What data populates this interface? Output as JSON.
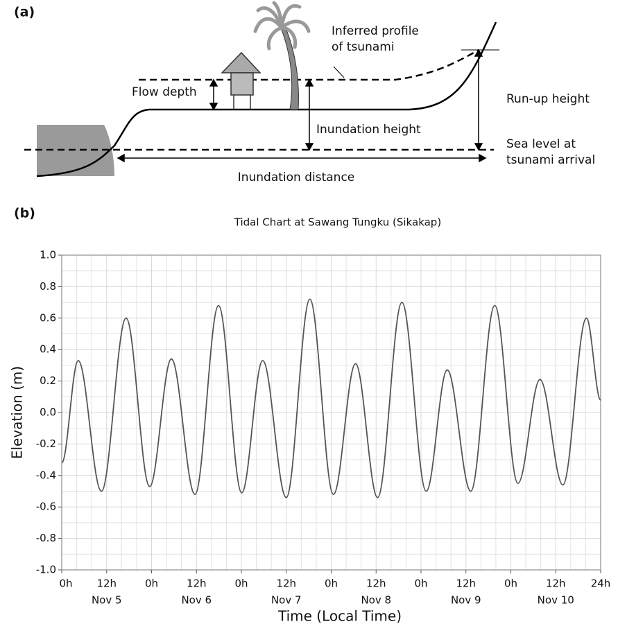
{
  "diagram": {
    "label": "(a)",
    "profile_label": [
      "Inferred profile",
      "of tsunami"
    ],
    "flow_depth": "Flow depth",
    "inundation_height": "Inundation height",
    "runup_height": "Run-up height",
    "sea_level": [
      "Sea level at",
      "tsunami arrival"
    ],
    "inundation_distance": "Inundation distance"
  },
  "chart_data": {
    "type": "line",
    "panel_label": "(b)",
    "title": "Tidal Chart at Sawang Tungku (Sikakap)",
    "xlabel": "Time (Local Time)",
    "ylabel": "Elevation (m)",
    "x": [
      0,
      4.4,
      10.6,
      17.2,
      23.5,
      29.3,
      35.6,
      41.9,
      48.1,
      53.7,
      60,
      66.3,
      72.6,
      78.5,
      84.4,
      90.9,
      97.4,
      103,
      109.3,
      115.7,
      121.9,
      127.8,
      133.9,
      140.2,
      144
    ],
    "values": [
      -0.32,
      0.33,
      -0.5,
      0.6,
      -0.47,
      0.34,
      -0.52,
      0.68,
      -0.51,
      0.33,
      -0.54,
      0.72,
      -0.52,
      0.31,
      -0.54,
      0.7,
      -0.5,
      0.27,
      -0.5,
      0.68,
      -0.45,
      0.21,
      -0.46,
      0.6,
      0.08
    ],
    "color": "#555555",
    "xlim": [
      0,
      144
    ],
    "xticks": [
      {
        "value": 0,
        "label": "0h"
      },
      {
        "value": 12,
        "label": "12h"
      },
      {
        "value": 24,
        "label": "0h"
      },
      {
        "value": 36,
        "label": "12h"
      },
      {
        "value": 48,
        "label": "0h"
      },
      {
        "value": 60,
        "label": "12h"
      },
      {
        "value": 72,
        "label": "0h"
      },
      {
        "value": 84,
        "label": "12h"
      },
      {
        "value": 96,
        "label": "0h"
      },
      {
        "value": 108,
        "label": "12h"
      },
      {
        "value": 120,
        "label": "0h"
      },
      {
        "value": 132,
        "label": "12h"
      },
      {
        "value": 144,
        "label": "24h"
      }
    ],
    "day_labels": [
      "Nov 5",
      "Nov 6",
      "Nov 7",
      "Nov 8",
      "Nov 9",
      "Nov 10"
    ],
    "ylim": [
      -1,
      1
    ],
    "yticks": [
      {
        "value": -1,
        "label": "-1.0"
      },
      -0.8,
      -0.6,
      -0.4,
      -0.2,
      {
        "value": 0,
        "label": "0.0"
      },
      0.2,
      0.4,
      0.6,
      0.8,
      {
        "value": 1,
        "label": "1.0"
      }
    ],
    "grid": true
  }
}
